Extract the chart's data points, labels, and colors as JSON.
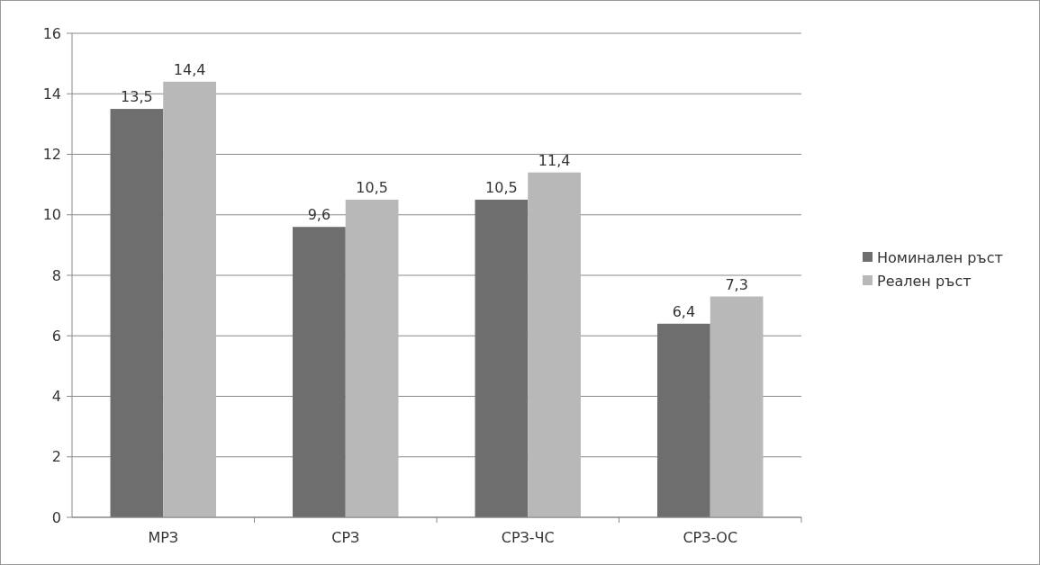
{
  "chart_data": {
    "type": "bar",
    "categories": [
      "МРЗ",
      "СРЗ",
      "СРЗ-ЧС",
      "СРЗ-ОС"
    ],
    "series": [
      {
        "name": "Номинален ръст",
        "color": "#6e6e6e",
        "values": [
          13.5,
          9.6,
          10.5,
          6.4
        ],
        "value_labels": [
          "13,5",
          "9,6",
          "10,5",
          "6,4"
        ]
      },
      {
        "name": "Реален ръст",
        "color": "#b8b8b8",
        "values": [
          14.4,
          10.5,
          11.4,
          7.3
        ],
        "value_labels": [
          "14,4",
          "10,5",
          "11,4",
          "7,3"
        ]
      }
    ],
    "ylim": [
      0,
      16
    ],
    "yticks": [
      0,
      2,
      4,
      6,
      8,
      10,
      12,
      14,
      16
    ],
    "grid": "y",
    "legend": "right"
  }
}
